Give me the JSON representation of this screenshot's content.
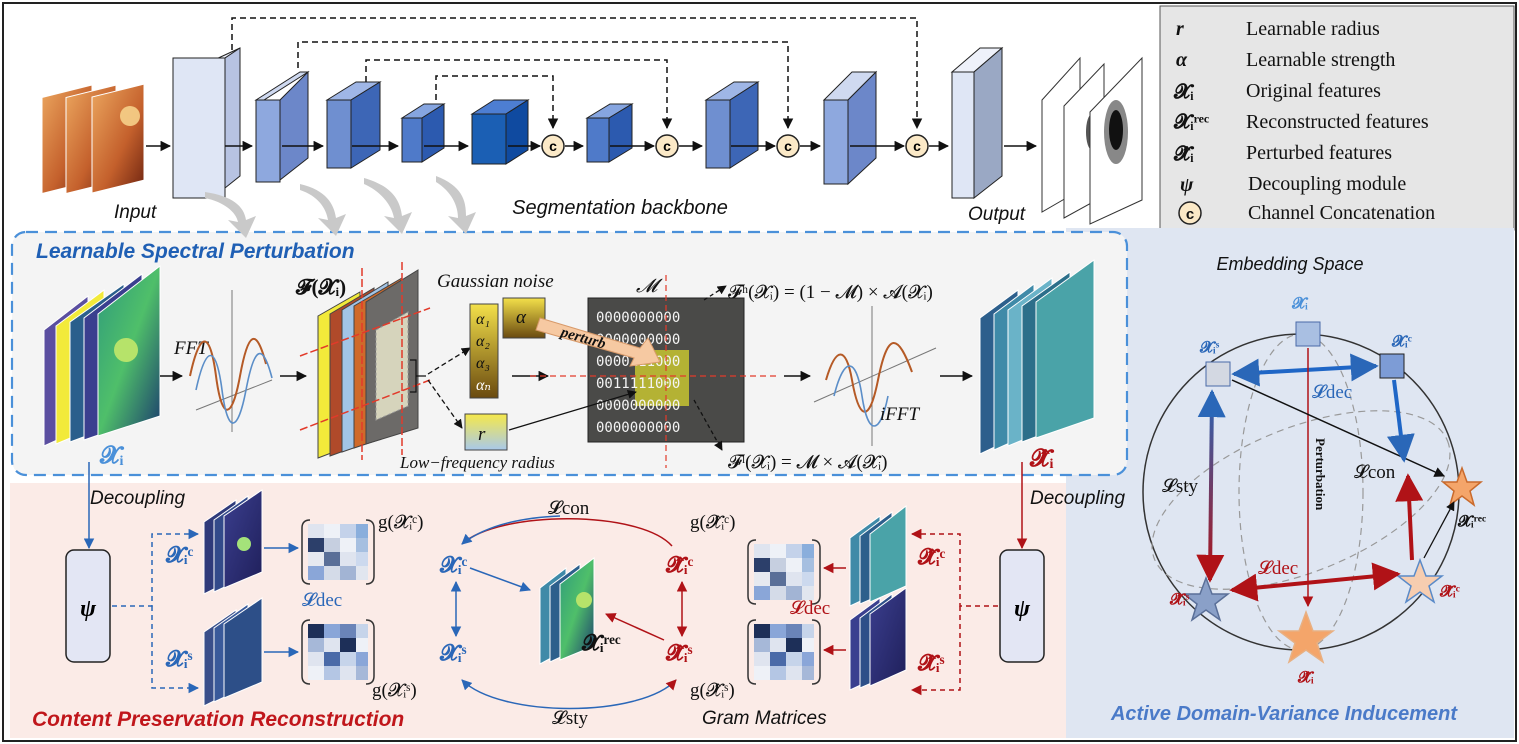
{
  "backbone": {
    "input_label": "Input",
    "title": "Segmentation backbone",
    "output_label": "Output",
    "concat_symbol": "c"
  },
  "legend": {
    "items": [
      {
        "symbol": "r",
        "text": "Learnable radius"
      },
      {
        "symbol": "α",
        "text": "Learnable strength"
      },
      {
        "symbol": "𝓧ᵢ",
        "text": "Original features"
      },
      {
        "symbol": "𝓧ᵢʳᵉᶜ",
        "text": "Reconstructed features"
      },
      {
        "symbol": "𝓧̂ᵢ",
        "text": "Perturbed features"
      },
      {
        "symbol": "ψ",
        "text": "Decoupling module"
      },
      {
        "symbol": "c",
        "text": "Channel Concatenation"
      }
    ]
  },
  "perturbation": {
    "title": "Learnable Spectral Perturbation",
    "xi": "𝓧ᵢ",
    "fft": "FFT",
    "fxi": "𝓕(𝓧ᵢ)",
    "gaussian": "Gaussian noise",
    "alphas": [
      "α₁",
      "α₂",
      "α₃",
      "αₙ"
    ],
    "alpha": "α",
    "r": "r",
    "radius": "Low−frequency radius",
    "perturb": "perturb",
    "mask": "𝓜",
    "mask_rows": [
      "0000000000",
      "0000000000",
      "0000111000",
      "0011111000",
      "0000000000",
      "0000000000"
    ],
    "fh": "𝓕ʰ(𝓧ᵢ) = (1 − 𝓜) × 𝓐(𝓧ᵢ)",
    "fl": "𝓕ˡ(𝓧ᵢ) = 𝓜 × 𝓐(𝓧ᵢ)",
    "ifft": "iFFT",
    "xhat": "𝓧̂ᵢ"
  },
  "reconstruction": {
    "title": "Content Preservation Reconstruction",
    "decoupling_left": "Decoupling",
    "decoupling_right": "Decoupling",
    "psi": "ψ",
    "xc": "𝓧ᵢᶜ",
    "xs": "𝓧ᵢˢ",
    "gxc": "g(𝓧ᵢᶜ)",
    "gxs": "g(𝓧ᵢˢ)",
    "ldec": "𝓛dec",
    "lcon": "𝓛con",
    "lsty": "𝓛sty",
    "xrec": "𝓧ᵢʳᵉᶜ",
    "xhc": "𝓧̂ᵢᶜ",
    "xhs": "𝓧̂ᵢˢ",
    "gxhc": "g(𝓧̂ᵢᶜ)",
    "gxhs": "g(𝓧̂ᵢˢ)",
    "ldec_r": "𝓛dec",
    "gram": "Gram Matrices"
  },
  "embedding": {
    "title": "Embedding Space",
    "xi": "𝓧ᵢ",
    "xs": "𝓧ᵢˢ",
    "xc": "𝓧ᵢᶜ",
    "ldec_top": "𝓛dec",
    "lsty": "𝓛sty",
    "perturbation": "Perturbation",
    "lcon": "𝓛con",
    "xrec": "𝓧ᵢʳᵉᶜ",
    "ldec_bottom": "𝓛dec",
    "xhs": "𝓧̂ᵢˢ",
    "xhc": "𝓧̂ᵢᶜ",
    "xhat": "𝓧̂ᵢ",
    "footer": "Active Domain-Variance Inducement"
  },
  "colors": {
    "blue_title": "#1f5fb4",
    "red_title": "#c0161b",
    "dark_red": "#a10e12",
    "block_light": "#dfe6f5",
    "block_mid": "#6f8fd0",
    "block_dark": "#1b5fb4",
    "panel_pink": "#fbeae6",
    "panel_gray": "#f2f2f2",
    "panel_blue": "#dde5f2"
  }
}
